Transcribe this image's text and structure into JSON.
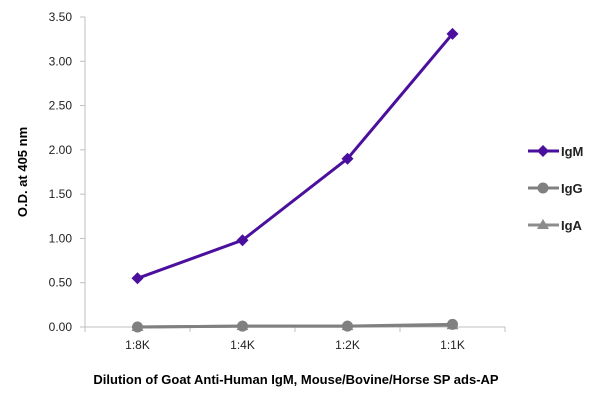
{
  "chart_data": {
    "type": "line",
    "title": "",
    "xlabel": "Dilution of Goat Anti-Human IgM, Mouse/Bovine/Horse SP ads-AP",
    "ylabel": "O.D. at 405 nm",
    "categories": [
      "1:8K",
      "1:4K",
      "1:2K",
      "1:1K"
    ],
    "ylim": [
      0,
      3.5
    ],
    "yticks": [
      "0.00",
      "0.50",
      "1.00",
      "1.50",
      "2.00",
      "2.50",
      "3.00",
      "3.50"
    ],
    "grid": false,
    "legend": "right",
    "series": [
      {
        "name": "IgM",
        "values": [
          0.55,
          0.98,
          1.9,
          3.31
        ],
        "color": "#4b0f9e",
        "marker": "diamond"
      },
      {
        "name": "IgG",
        "values": [
          0.0,
          0.01,
          0.01,
          0.03
        ],
        "color": "#808080",
        "marker": "circle"
      },
      {
        "name": "IgA",
        "values": [
          0.0,
          0.01,
          0.01,
          0.02
        ],
        "color": "#8c8c8c",
        "marker": "triangle"
      }
    ]
  }
}
